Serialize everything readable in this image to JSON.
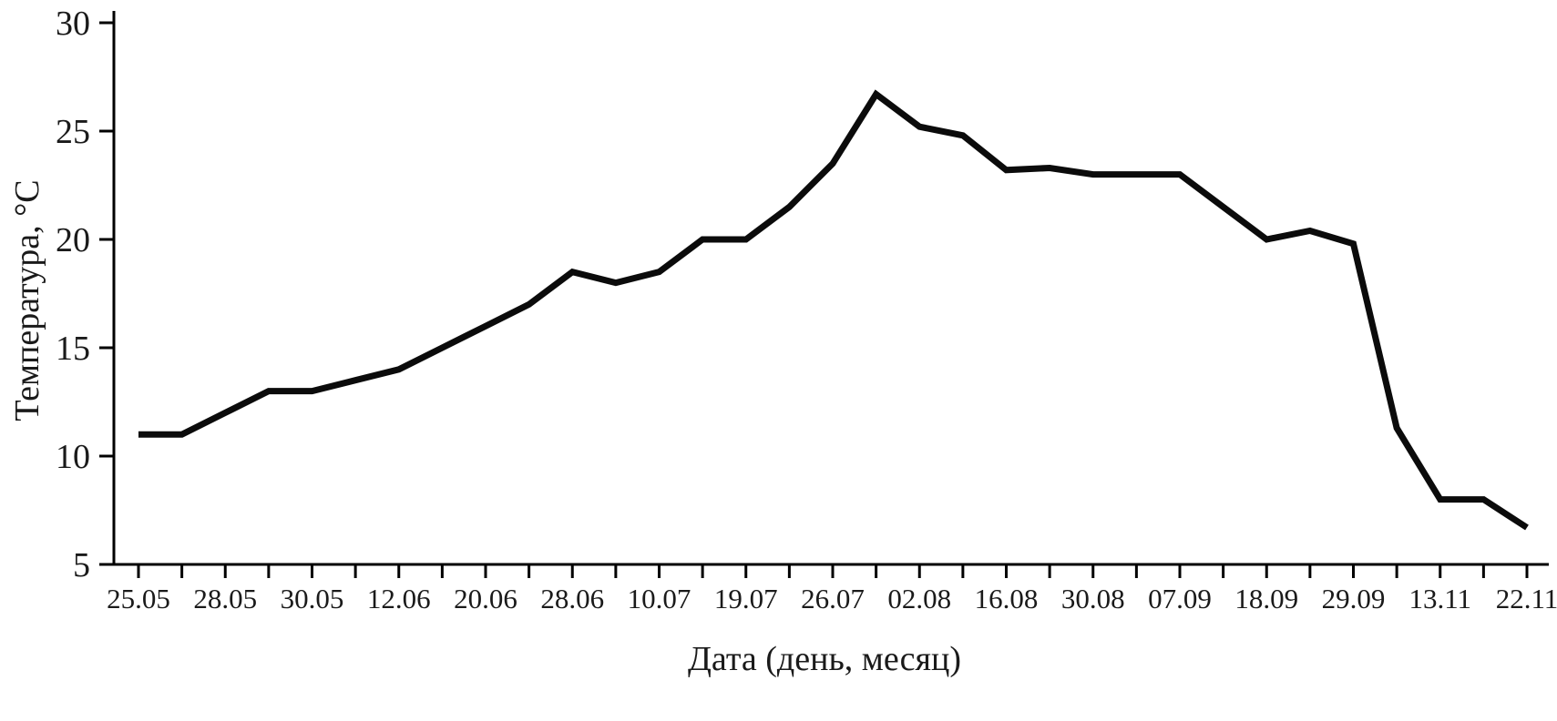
{
  "chart_data": {
    "type": "line",
    "title": "",
    "xlabel": "Дата (день, месяц)",
    "ylabel": "Температура, °C",
    "ylim": [
      5,
      30
    ],
    "yticks": [
      5,
      10,
      15,
      20,
      25,
      30
    ],
    "x_tick_labels": [
      "25.05",
      "28.05",
      "30.05",
      "12.06",
      "20.06",
      "28.06",
      "10.07",
      "19.07",
      "26.07",
      "02.08",
      "16.08",
      "30.08",
      "07.09",
      "18.09",
      "29.09",
      "13.11",
      "22.11"
    ],
    "label_every_n_points": 2,
    "values": [
      11,
      11,
      12,
      13,
      13,
      13.5,
      14,
      15,
      16,
      17,
      18.5,
      18,
      18.5,
      20,
      20,
      21.5,
      23.5,
      26.7,
      25.2,
      24.8,
      23.2,
      23.3,
      23,
      23,
      23,
      21.5,
      20,
      20.4,
      19.8,
      11.3,
      8,
      8,
      6.7
    ],
    "line_color": "#0b0b0b",
    "axis_color": "#000000",
    "grid": false,
    "legend": "none"
  }
}
